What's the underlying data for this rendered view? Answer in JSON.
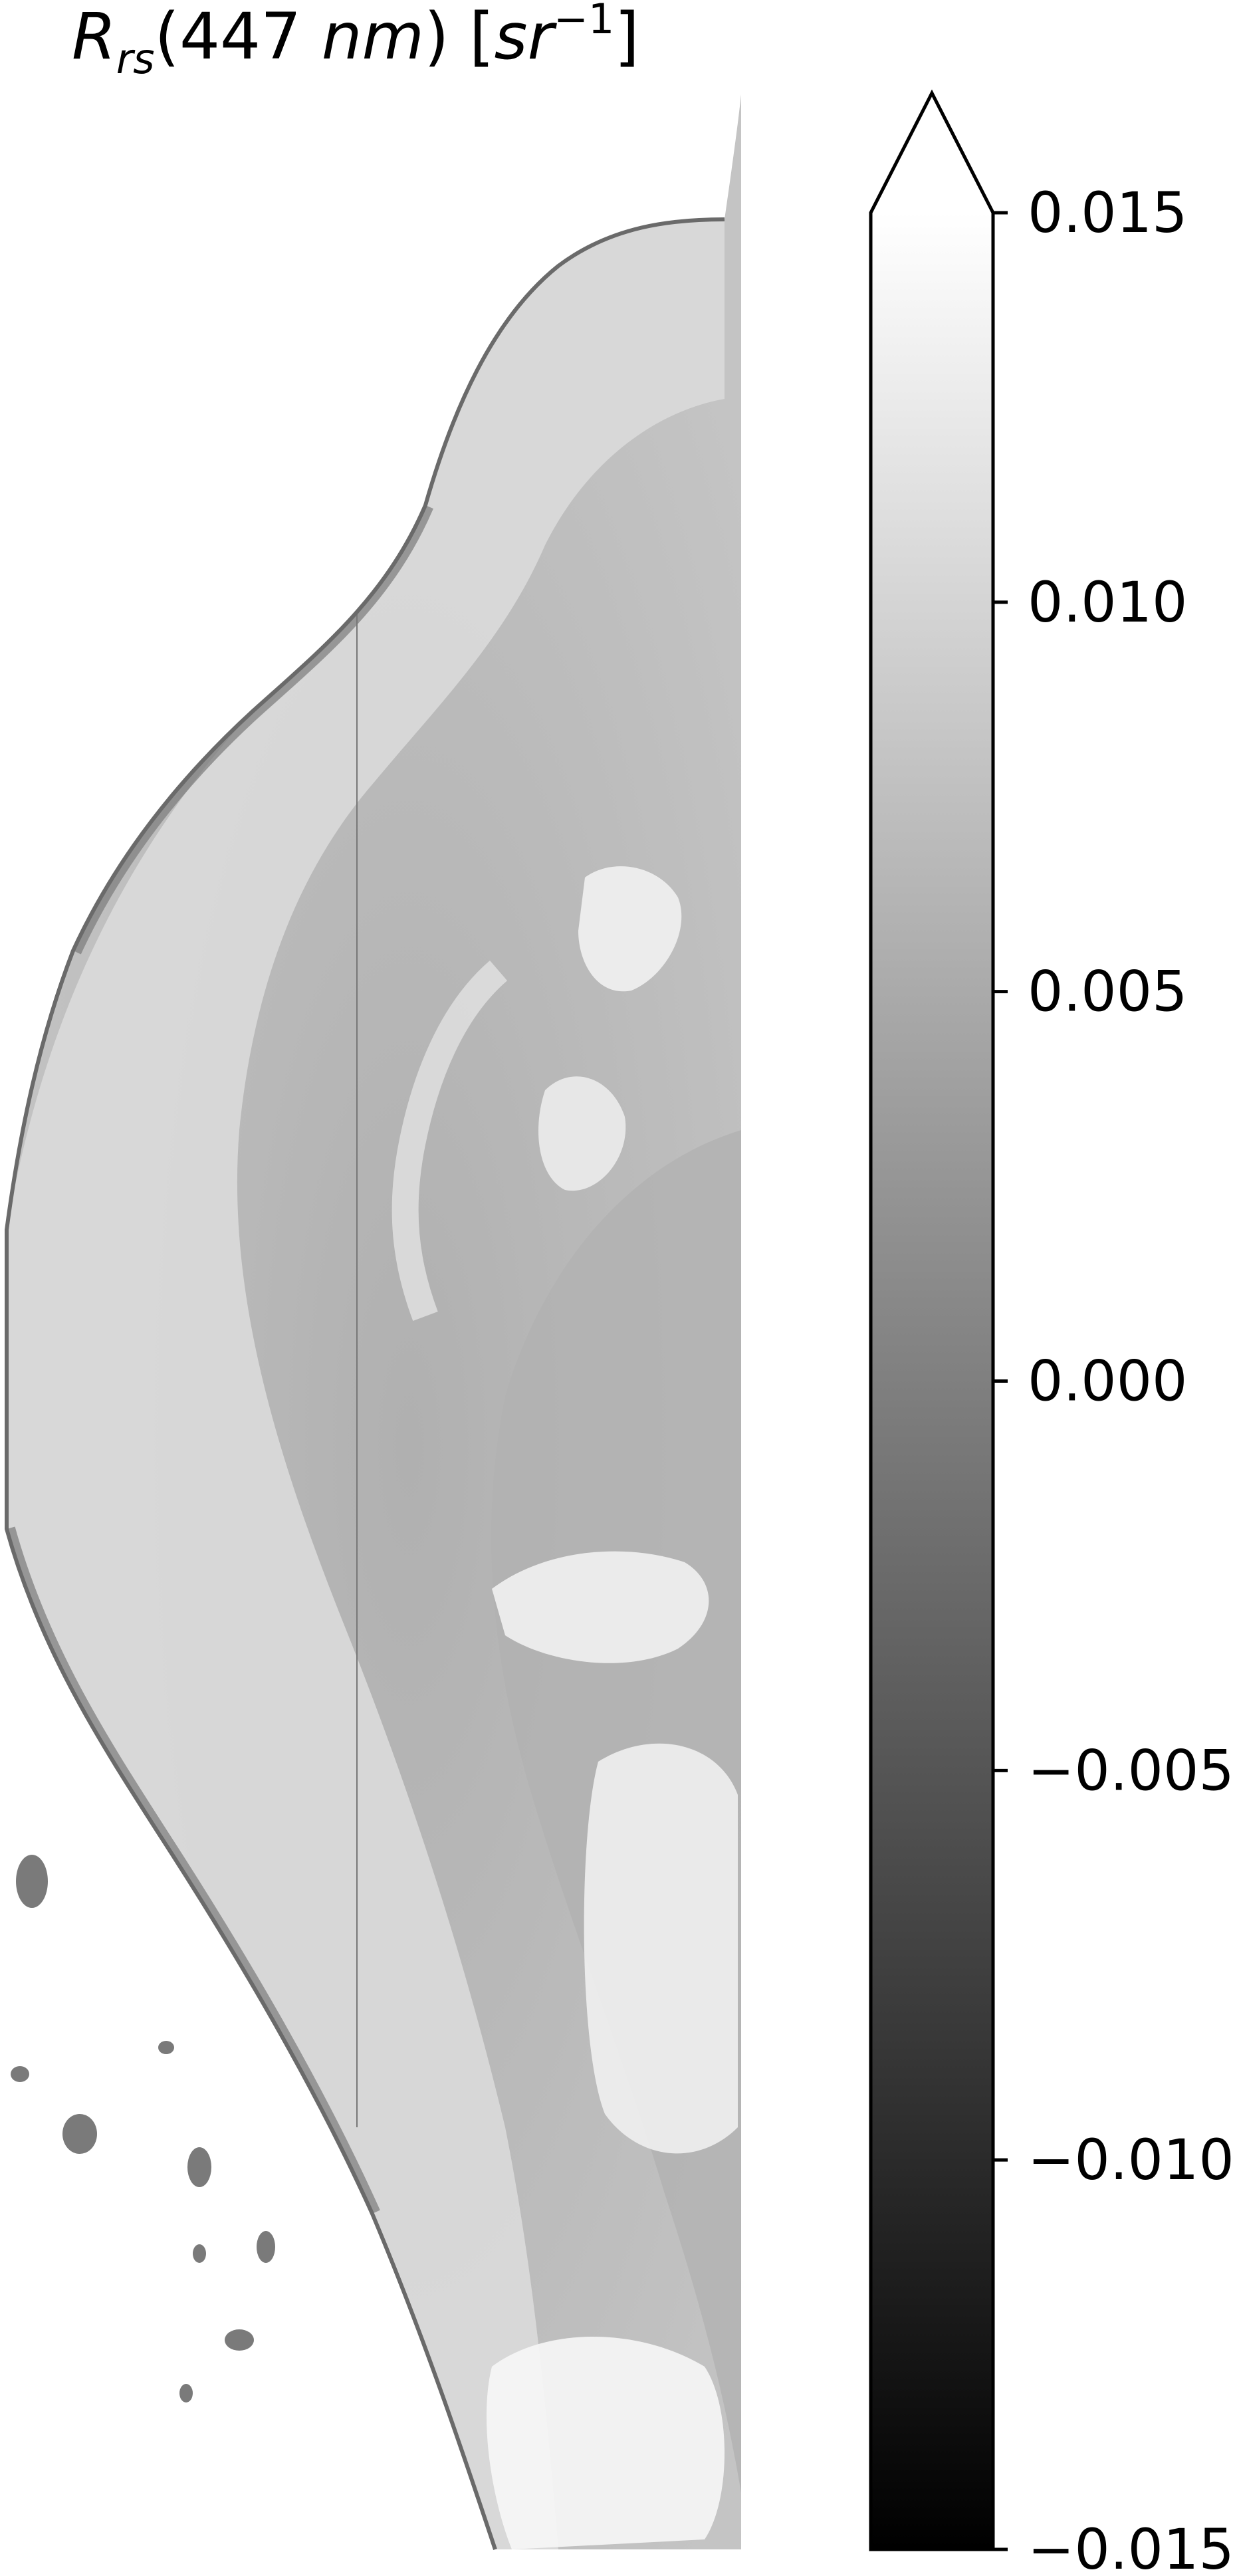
{
  "title": {
    "symbol": "R",
    "subscript": "rs",
    "wavelength": "(447",
    "unit_nm": "nm",
    "close_paren": ")",
    "bracket_open": "[",
    "unit_sr": "sr",
    "exponent": "−1",
    "bracket_close": "]"
  },
  "colorbar": {
    "colormap": "gray",
    "vmin": -0.015,
    "vmax": 0.015,
    "extend": "max",
    "ticks": [
      {
        "value": 0.015,
        "label": "0.015"
      },
      {
        "value": 0.01,
        "label": "0.010"
      },
      {
        "value": 0.005,
        "label": "0.005"
      },
      {
        "value": 0.0,
        "label": "0.000"
      },
      {
        "value": -0.005,
        "label": "−0.005"
      },
      {
        "value": -0.01,
        "label": "−0.010"
      },
      {
        "value": -0.015,
        "label": "−0.015"
      }
    ],
    "color_low": "#000000",
    "color_high": "#ffffff",
    "outline_color": "#000000"
  },
  "map": {
    "water_base_color": "#b8b8b8",
    "nearshore_color": "#dedede",
    "dark_coast_color": "#6e6e6e",
    "land_color": "#ffffff"
  }
}
